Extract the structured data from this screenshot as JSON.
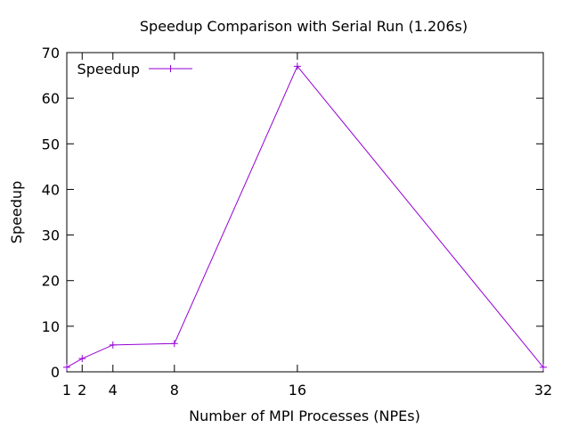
{
  "chart_data": {
    "type": "line",
    "title": "Speedup Comparison with Serial Run (1.206s)",
    "xlabel": "Number of MPI Processes (NPEs)",
    "ylabel": "Speedup",
    "xlim": [
      1,
      32
    ],
    "ylim": [
      0,
      70
    ],
    "xticks": [
      1,
      2,
      4,
      8,
      16,
      32
    ],
    "yticks": [
      0,
      10,
      20,
      30,
      40,
      50,
      60,
      70
    ],
    "grid": false,
    "legend_position": "top-left",
    "series": [
      {
        "name": "Speedup",
        "color": "#9400d3",
        "marker": "plus",
        "points": [
          {
            "x": 1,
            "y": 1.0
          },
          {
            "x": 2,
            "y": 2.9
          },
          {
            "x": 4,
            "y": 5.9
          },
          {
            "x": 8,
            "y": 6.2
          },
          {
            "x": 16,
            "y": 67.0
          },
          {
            "x": 32,
            "y": 1.0
          }
        ]
      }
    ]
  }
}
